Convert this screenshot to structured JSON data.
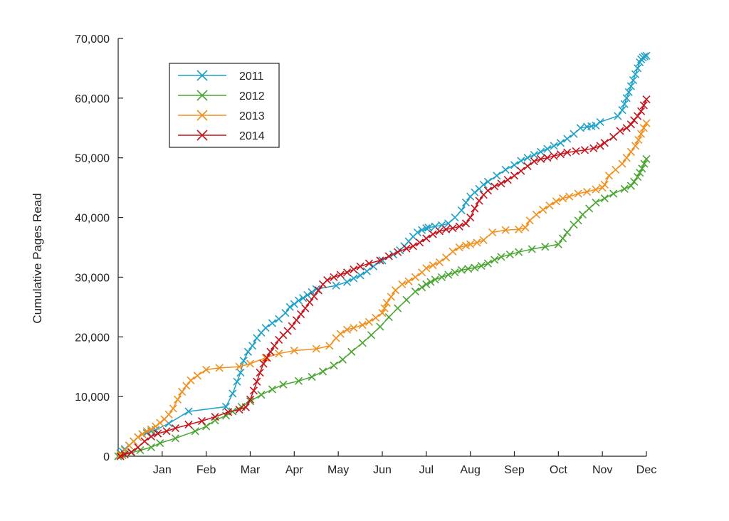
{
  "chart_data": {
    "type": "line",
    "title": "",
    "xlabel": "",
    "ylabel": "Cumulative Pages Read",
    "ylim": [
      0,
      70000
    ],
    "yticks": [
      "0",
      "10,000",
      "20,000",
      "30,000",
      "40,000",
      "50,000",
      "60,000",
      "70,000"
    ],
    "ytick_values": [
      0,
      10000,
      20000,
      30000,
      40000,
      50000,
      60000,
      70000
    ],
    "xlim": [
      0,
      12
    ],
    "xticks": [
      "Jan",
      "Feb",
      "Mar",
      "Apr",
      "May",
      "Jun",
      "Jul",
      "Aug",
      "Sep",
      "Oct",
      "Nov",
      "Dec"
    ],
    "xtick_values": [
      1,
      2,
      3,
      4,
      5,
      6,
      7,
      8,
      9,
      10,
      11,
      12
    ],
    "x_unit_note": "",
    "grid": false,
    "legend_position": "top-left",
    "marker": "x",
    "series": [
      {
        "name": "2011",
        "color": "#1ea1c8",
        "x": [
          0.05,
          0.1,
          0.15,
          0.25,
          0.35,
          0.45,
          0.55,
          0.65,
          0.75,
          0.85,
          1.15,
          1.6,
          2.45,
          2.6,
          2.7,
          2.78,
          2.85,
          2.95,
          3.05,
          3.15,
          3.25,
          3.35,
          3.5,
          3.65,
          3.8,
          3.9,
          4.0,
          4.1,
          4.2,
          4.3,
          4.4,
          4.5,
          4.95,
          5.2,
          5.35,
          5.5,
          5.65,
          5.8,
          6.0,
          6.25,
          6.4,
          6.5,
          6.6,
          6.7,
          6.8,
          6.9,
          7.0,
          7.05,
          7.2,
          7.35,
          7.5,
          7.65,
          7.8,
          7.9,
          8.0,
          8.1,
          8.2,
          8.3,
          8.4,
          8.6,
          8.8,
          9.0,
          9.15,
          9.3,
          9.45,
          9.6,
          9.75,
          9.9,
          10.05,
          10.2,
          10.35,
          10.5,
          10.65,
          10.75,
          10.85,
          10.95,
          11.35,
          11.45,
          11.5,
          11.55,
          11.6,
          11.65,
          11.7,
          11.75,
          11.8,
          11.85,
          11.88,
          11.92,
          11.96,
          12.0
        ],
        "values": [
          500,
          800,
          1200,
          1800,
          2500,
          3200,
          3700,
          3900,
          4200,
          4400,
          5500,
          7500,
          8300,
          10500,
          12500,
          14000,
          16000,
          17500,
          18500,
          19800,
          20700,
          21500,
          22300,
          23000,
          24000,
          25000,
          25500,
          26100,
          26500,
          27000,
          27500,
          28000,
          28600,
          29200,
          29800,
          30300,
          31000,
          31800,
          32800,
          33800,
          34500,
          35200,
          36000,
          36800,
          37500,
          37900,
          38200,
          38300,
          38500,
          38700,
          39000,
          40000,
          41200,
          42500,
          43500,
          44200,
          44800,
          45500,
          46000,
          47000,
          48000,
          48800,
          49500,
          50000,
          50500,
          51000,
          51500,
          52000,
          52500,
          53200,
          54000,
          55000,
          55200,
          55300,
          55400,
          56000,
          57000,
          58000,
          59000,
          60000,
          61000,
          62000,
          63000,
          64000,
          65000,
          66000,
          66500,
          66800,
          67000,
          67100
        ]
      },
      {
        "name": "2012",
        "color": "#4aa532",
        "x": [
          0.0,
          0.1,
          0.3,
          0.5,
          0.75,
          0.95,
          1.3,
          1.75,
          2.0,
          2.2,
          2.45,
          2.6,
          2.8,
          3.0,
          3.25,
          3.5,
          3.75,
          4.1,
          4.4,
          4.65,
          4.9,
          5.1,
          5.3,
          5.55,
          5.75,
          5.95,
          6.15,
          6.35,
          6.55,
          6.75,
          6.9,
          7.0,
          7.1,
          7.2,
          7.35,
          7.5,
          7.65,
          7.8,
          7.95,
          8.1,
          8.25,
          8.4,
          8.55,
          8.7,
          8.9,
          9.1,
          9.4,
          9.7,
          10.0,
          10.1,
          10.2,
          10.35,
          10.45,
          10.55,
          10.7,
          10.85,
          11.05,
          11.25,
          11.5,
          11.65,
          11.72,
          11.8,
          11.85,
          11.9,
          11.95,
          12.0
        ],
        "values": [
          0,
          200,
          600,
          1000,
          1500,
          2200,
          3000,
          4200,
          5000,
          6000,
          6800,
          7500,
          8300,
          9200,
          10300,
          11200,
          12000,
          12600,
          13300,
          14200,
          15200,
          16200,
          17500,
          19000,
          20300,
          21700,
          23300,
          24800,
          26200,
          27600,
          28300,
          28800,
          29200,
          29600,
          30000,
          30400,
          30800,
          31200,
          31400,
          31600,
          31900,
          32300,
          32900,
          33400,
          33800,
          34200,
          34700,
          35100,
          35500,
          36500,
          37500,
          38800,
          39500,
          40500,
          41500,
          42500,
          43200,
          44000,
          44800,
          45300,
          46000,
          46800,
          47500,
          48200,
          49000,
          49800
        ]
      },
      {
        "name": "2013",
        "color": "#f28f1c",
        "x": [
          0.05,
          0.15,
          0.25,
          0.35,
          0.45,
          0.55,
          0.65,
          0.75,
          0.85,
          0.95,
          1.05,
          1.15,
          1.25,
          1.35,
          1.45,
          1.55,
          1.65,
          1.8,
          2.0,
          2.3,
          2.75,
          3.0,
          3.35,
          3.65,
          4.0,
          4.5,
          4.8,
          4.95,
          5.05,
          5.2,
          5.35,
          5.55,
          5.7,
          5.85,
          6.0,
          6.05,
          6.1,
          6.2,
          6.3,
          6.45,
          6.6,
          6.75,
          6.9,
          7.0,
          7.15,
          7.3,
          7.45,
          7.6,
          7.75,
          7.9,
          8.0,
          8.15,
          8.3,
          8.5,
          8.8,
          9.1,
          9.25,
          9.35,
          9.5,
          9.65,
          9.8,
          9.95,
          10.1,
          10.25,
          10.45,
          10.65,
          10.85,
          11.0,
          11.05,
          11.15,
          11.3,
          11.45,
          11.55,
          11.65,
          11.75,
          11.82,
          11.88,
          11.94,
          12.0
        ],
        "values": [
          300,
          1000,
          1800,
          2500,
          3200,
          3700,
          4200,
          4500,
          5000,
          5600,
          6200,
          7000,
          8000,
          9500,
          10800,
          11800,
          12700,
          13500,
          14500,
          14800,
          15000,
          15500,
          16500,
          17200,
          17700,
          18000,
          18500,
          19800,
          20500,
          21200,
          21500,
          22000,
          22500,
          23200,
          24000,
          24800,
          25700,
          26700,
          27800,
          28800,
          29300,
          30000,
          30800,
          31500,
          32000,
          32500,
          33300,
          34300,
          35000,
          35300,
          35500,
          35800,
          36200,
          37500,
          37900,
          38000,
          38300,
          39500,
          40500,
          41300,
          42000,
          42700,
          43200,
          43500,
          44000,
          44300,
          44700,
          45000,
          45500,
          47000,
          48000,
          49000,
          50000,
          51000,
          52000,
          53000,
          54000,
          55000,
          55800
        ]
      },
      {
        "name": "2014",
        "color": "#c4141c",
        "x": [
          0.05,
          0.15,
          0.3,
          0.45,
          0.6,
          0.75,
          0.9,
          1.1,
          1.3,
          1.6,
          1.9,
          2.2,
          2.5,
          2.75,
          2.9,
          3.0,
          3.08,
          3.15,
          3.22,
          3.3,
          3.38,
          3.46,
          3.55,
          3.65,
          3.75,
          3.85,
          3.95,
          4.05,
          4.15,
          4.25,
          4.35,
          4.45,
          4.55,
          4.65,
          4.75,
          4.9,
          5.05,
          5.2,
          5.35,
          5.5,
          5.7,
          5.95,
          6.15,
          6.35,
          6.55,
          6.7,
          6.85,
          7.0,
          7.15,
          7.3,
          7.45,
          7.6,
          7.75,
          7.9,
          8.0,
          8.1,
          8.2,
          8.3,
          8.4,
          8.55,
          8.7,
          8.85,
          9.0,
          9.15,
          9.3,
          9.45,
          9.6,
          9.75,
          9.9,
          10.05,
          10.2,
          10.4,
          10.6,
          10.8,
          10.95,
          11.05,
          11.25,
          11.4,
          11.55,
          11.65,
          11.72,
          11.8,
          11.88,
          11.94,
          12.0
        ],
        "values": [
          0,
          300,
          700,
          1500,
          2500,
          3300,
          3800,
          4200,
          4700,
          5300,
          5900,
          6600,
          7400,
          7800,
          8200,
          9500,
          11000,
          12500,
          14000,
          15500,
          16500,
          17500,
          18500,
          19500,
          20300,
          21000,
          21800,
          22800,
          23800,
          24800,
          25800,
          26800,
          27800,
          28800,
          29500,
          30000,
          30400,
          30800,
          31300,
          31800,
          32300,
          32800,
          33500,
          34200,
          34800,
          35200,
          35800,
          36500,
          37200,
          37700,
          38000,
          38200,
          38500,
          39000,
          40000,
          41500,
          42800,
          43800,
          44500,
          45200,
          45700,
          46300,
          47000,
          47800,
          48600,
          49400,
          49800,
          50000,
          50300,
          50600,
          50900,
          51100,
          51300,
          51600,
          52000,
          52500,
          53500,
          54500,
          55000,
          55600,
          56300,
          57000,
          57800,
          58800,
          59800
        ]
      }
    ]
  }
}
